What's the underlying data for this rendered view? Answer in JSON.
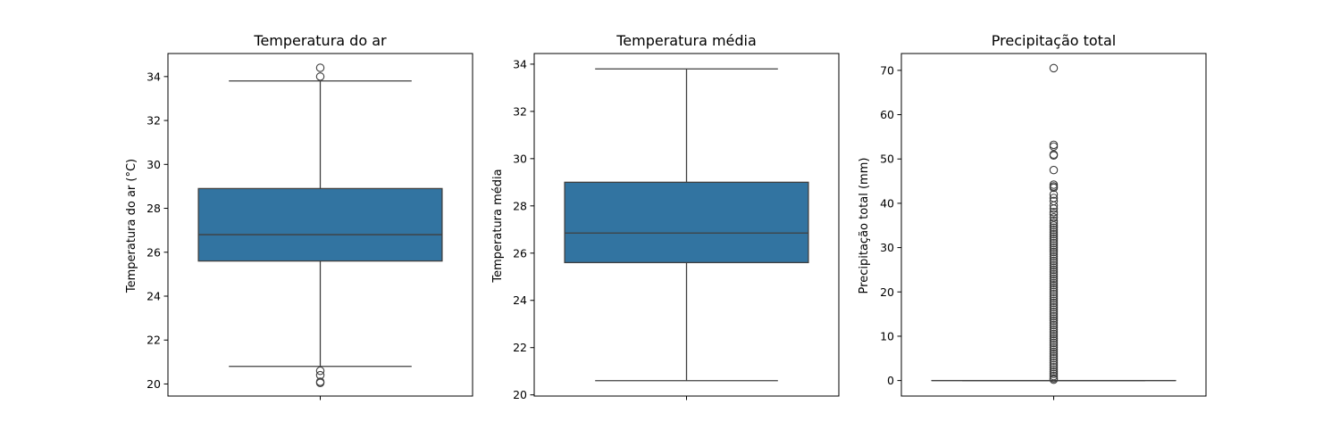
{
  "chart_data": [
    {
      "type": "box",
      "title": "Temperatura do ar",
      "xlabel": "",
      "ylabel": "Temperatura do ar (°C)",
      "ylim": [
        19.45,
        35.05
      ],
      "yticks": [
        20,
        22,
        24,
        26,
        28,
        30,
        32,
        34
      ],
      "ytick_labels": [
        "20",
        "22",
        "24",
        "26",
        "28",
        "30",
        "32",
        "34"
      ],
      "box": {
        "q1": 25.6,
        "median": 26.8,
        "q3": 28.9,
        "whisker_low": 20.8,
        "whisker_high": 33.8
      },
      "outliers": [
        34.4,
        34.0,
        20.6,
        20.4,
        20.1,
        20.05
      ],
      "grid": false,
      "color": "#3274a1"
    },
    {
      "type": "box",
      "title": "Temperatura média",
      "xlabel": "",
      "ylabel": "Temperatura média",
      "ylim": [
        19.95,
        34.45
      ],
      "yticks": [
        20,
        22,
        24,
        26,
        28,
        30,
        32,
        34
      ],
      "ytick_labels": [
        "20",
        "22",
        "24",
        "26",
        "28",
        "30",
        "32",
        "34"
      ],
      "box": {
        "q1": 25.6,
        "median": 26.85,
        "q3": 29.0,
        "whisker_low": 20.6,
        "whisker_high": 33.8
      },
      "outliers": [],
      "grid": false,
      "color": "#3274a1"
    },
    {
      "type": "box",
      "title": "Precipitação total",
      "xlabel": "",
      "ylabel": "Precipitação total (mm)",
      "ylim": [
        -3.5,
        73.8
      ],
      "yticks": [
        0,
        10,
        20,
        30,
        40,
        50,
        60,
        70
      ],
      "ytick_labels": [
        "0",
        "10",
        "20",
        "30",
        "40",
        "50",
        "60",
        "70"
      ],
      "box": {
        "q1": 0,
        "median": 0,
        "q3": 0,
        "whisker_low": 0,
        "whisker_high": 0
      },
      "outliers": [
        70.5,
        53.2,
        52.8,
        51.0,
        50.8,
        47.5,
        44.2,
        43.8,
        43.5,
        42.0,
        41.2,
        40.5,
        39.5,
        38.8,
        38.0,
        37.5,
        36.8,
        36.0,
        35.5,
        35.0,
        34.5,
        34.0,
        33.5,
        33.0,
        32.5,
        32.0,
        31.5,
        31.0,
        30.5,
        30.0,
        29.5,
        29.0,
        28.5,
        28.0,
        27.5,
        27.0,
        26.5,
        26.0,
        25.5,
        25.0,
        24.5,
        24.0,
        23.5,
        23.0,
        22.5,
        22.0,
        21.5,
        21.0,
        20.5,
        20.0,
        19.5,
        19.0,
        18.5,
        18.0,
        17.5,
        17.0,
        16.5,
        16.0,
        15.5,
        15.0,
        14.5,
        14.0,
        13.5,
        13.0,
        12.5,
        12.0,
        11.5,
        11.0,
        10.5,
        10.0,
        9.5,
        9.0,
        8.5,
        8.0,
        7.5,
        7.0,
        6.5,
        6.0,
        5.5,
        5.0,
        4.5,
        4.0,
        3.5,
        3.0,
        2.5,
        2.0,
        1.5,
        1.0,
        0.5,
        0.2
      ],
      "grid": false,
      "color": "#3274a1"
    }
  ]
}
